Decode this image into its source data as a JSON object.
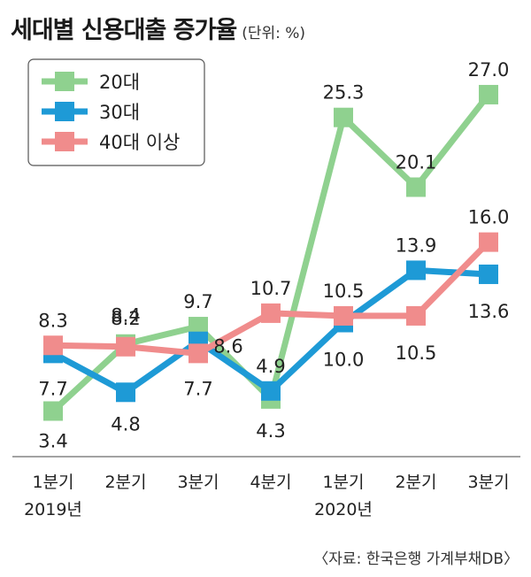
{
  "title": "세대별 신용대출 증가율",
  "unit": "(단위: %)",
  "source": "〈자료: 한국은행 가계부채DB〉",
  "chart_data": {
    "type": "line",
    "categories": [
      [
        "1분기",
        "2019년"
      ],
      [
        "2분기",
        ""
      ],
      [
        "3분기",
        ""
      ],
      [
        "4분기",
        ""
      ],
      [
        "1분기",
        "2020년"
      ],
      [
        "2분기",
        ""
      ],
      [
        "3분기",
        ""
      ]
    ],
    "series": [
      {
        "name": "20대",
        "color": "#8fd18f",
        "values": [
          3.4,
          8.4,
          9.7,
          4.3,
          25.3,
          20.1,
          27.0
        ],
        "labels": [
          "3.4",
          "8.4",
          "9.7",
          "4.3",
          "25.3",
          "20.1",
          "27.0"
        ]
      },
      {
        "name": "30대",
        "color": "#1e9ad6",
        "values": [
          7.7,
          4.8,
          8.6,
          4.9,
          10.0,
          13.9,
          13.6
        ],
        "labels": [
          "7.7",
          "4.8",
          "8.6",
          "4.9",
          "10.0",
          "13.9",
          "13.6"
        ]
      },
      {
        "name": "40대 이상",
        "color": "#f08c8c",
        "values": [
          8.3,
          8.2,
          7.7,
          10.7,
          10.5,
          10.5,
          16.0
        ],
        "labels": [
          "8.3",
          "8.2",
          "7.7",
          "10.7",
          "10.5",
          "10.5",
          "16.0"
        ]
      }
    ],
    "ylim": [
      0,
      30
    ],
    "grid": false,
    "legend": "top-left"
  }
}
